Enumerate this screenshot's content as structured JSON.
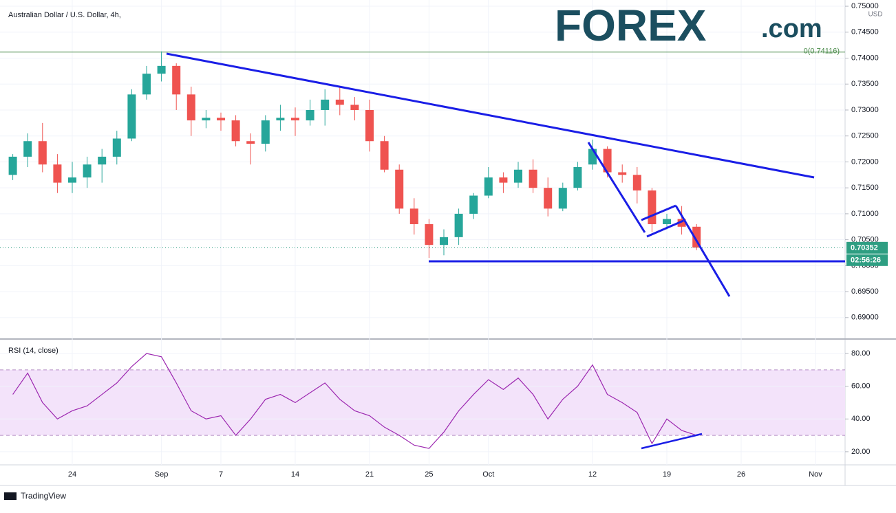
{
  "header": {
    "title": "Australian Dollar / U.S. Dollar, 4h,",
    "footer": "TradingView"
  },
  "logo": {
    "main": "FOREX",
    "suffix": ".com"
  },
  "chart_data": [
    {
      "type": "candlestick",
      "currency": "USD",
      "categories": [
        null,
        null,
        null,
        null,
        "24",
        null,
        null,
        null,
        null,
        null,
        "Sep",
        null,
        null,
        null,
        "7",
        null,
        null,
        null,
        null,
        "14",
        null,
        null,
        null,
        null,
        "21",
        null,
        null,
        null,
        "25",
        null,
        null,
        null,
        "Oct",
        null,
        null,
        null,
        null,
        null,
        null,
        "12",
        null,
        null,
        null,
        null,
        "19",
        null,
        null,
        null,
        null,
        "26",
        null,
        null,
        null,
        null,
        "Nov"
      ],
      "open": [
        0.7175,
        0.721,
        0.724,
        0.7195,
        0.716,
        0.717,
        0.7195,
        0.721,
        0.7245,
        0.733,
        0.737,
        0.7385,
        0.733,
        0.728,
        0.7285,
        0.728,
        0.724,
        0.7235,
        0.728,
        0.7285,
        0.728,
        0.73,
        0.732,
        0.731,
        0.73,
        0.724,
        0.7185,
        0.711,
        0.708,
        0.704,
        0.7055,
        0.71,
        0.7135,
        0.717,
        0.716,
        0.7185,
        0.715,
        0.711,
        0.715,
        0.7195,
        0.7225,
        0.718,
        0.7175,
        0.7145,
        0.708,
        0.709,
        0.7075,
        null,
        null,
        null,
        null,
        null,
        null,
        null,
        null
      ],
      "high": [
        0.7215,
        0.7255,
        0.7275,
        0.7215,
        0.72,
        0.721,
        0.7225,
        0.726,
        0.734,
        0.7385,
        0.7413,
        0.739,
        0.7345,
        0.73,
        0.7295,
        0.729,
        0.7255,
        0.729,
        0.731,
        0.7305,
        0.732,
        0.734,
        0.7345,
        0.7325,
        0.732,
        0.725,
        0.7195,
        0.713,
        0.709,
        0.707,
        0.711,
        0.714,
        0.719,
        0.718,
        0.72,
        0.7205,
        0.717,
        0.716,
        0.72,
        0.7243,
        0.723,
        0.7195,
        0.719,
        0.715,
        0.71,
        0.7115,
        0.708,
        null,
        null,
        null,
        null,
        null,
        null,
        null,
        null
      ],
      "low": [
        0.7165,
        0.719,
        0.718,
        0.714,
        0.714,
        0.715,
        0.716,
        0.7195,
        0.724,
        0.732,
        0.7355,
        0.73,
        0.725,
        0.7265,
        0.726,
        0.723,
        0.7195,
        0.722,
        0.726,
        0.725,
        0.727,
        0.727,
        0.729,
        0.728,
        0.722,
        0.718,
        0.71,
        0.706,
        0.7015,
        0.702,
        0.704,
        0.709,
        0.713,
        0.714,
        0.715,
        0.714,
        0.7095,
        0.7105,
        0.7145,
        0.7185,
        0.717,
        0.716,
        0.712,
        0.7065,
        0.707,
        0.706,
        0.703,
        null,
        null,
        null,
        null,
        null,
        null,
        null,
        null
      ],
      "close": [
        0.721,
        0.724,
        0.7195,
        0.716,
        0.717,
        0.7195,
        0.721,
        0.7245,
        0.733,
        0.737,
        0.7385,
        0.733,
        0.728,
        0.7285,
        0.728,
        0.724,
        0.7235,
        0.728,
        0.7285,
        0.728,
        0.73,
        0.732,
        0.731,
        0.73,
        0.724,
        0.7185,
        0.711,
        0.708,
        0.704,
        0.7055,
        0.71,
        0.7135,
        0.717,
        0.716,
        0.7185,
        0.715,
        0.711,
        0.715,
        0.719,
        0.7225,
        0.718,
        0.7175,
        0.7145,
        0.708,
        0.709,
        0.7075,
        0.7035,
        null,
        null,
        null,
        null,
        null,
        null,
        null,
        null
      ],
      "up_color": "#26a69a",
      "down_color": "#ef5350",
      "ylim": [
        0.686,
        0.7512
      ],
      "yticks": [
        {
          "value": 0.69,
          "label": "0.69000"
        },
        {
          "value": 0.695,
          "label": "0.69500"
        },
        {
          "value": 0.7,
          "label": "0.70000"
        },
        {
          "value": 0.705,
          "label": "0.70500"
        },
        {
          "value": 0.71,
          "label": "0.71000"
        },
        {
          "value": 0.715,
          "label": "0.71500"
        },
        {
          "value": 0.72,
          "label": "0.72000"
        },
        {
          "value": 0.725,
          "label": "0.72500"
        },
        {
          "value": 0.73,
          "label": "0.73000"
        },
        {
          "value": 0.735,
          "label": "0.73500"
        },
        {
          "value": 0.74,
          "label": "0.74000"
        },
        {
          "value": 0.745,
          "label": "0.74500"
        },
        {
          "value": 0.75,
          "label": "0.75000"
        }
      ],
      "reference_line": {
        "value": 0.74116,
        "label": "0(0.74116)",
        "color": "#4a8a4a"
      },
      "last_price": {
        "value": 0.70352,
        "label": "0.70352",
        "color": "#2e9e82"
      },
      "countdown": "02:56:26"
    },
    {
      "type": "line",
      "title": "RSI (14, close)",
      "color": "#9c27b0",
      "values": [
        55,
        68,
        50,
        40,
        45,
        48,
        55,
        62,
        72,
        80,
        78,
        62,
        45,
        40,
        42,
        30,
        40,
        52,
        55,
        50,
        56,
        62,
        52,
        45,
        42,
        35,
        30,
        24,
        22,
        32,
        45,
        55,
        64,
        58,
        65,
        55,
        40,
        52,
        60,
        73,
        55,
        50,
        44,
        25,
        40,
        33,
        30,
        null,
        null,
        null,
        null,
        null,
        null,
        null,
        null
      ],
      "band": [
        30,
        70
      ],
      "band_color": "#f3e3fa",
      "ylim": [
        12.4,
        88.4
      ],
      "yticks": [
        {
          "value": 20,
          "label": "20.00"
        },
        {
          "value": 40,
          "label": "40.00"
        },
        {
          "value": 60,
          "label": "60.00"
        },
        {
          "value": 80,
          "label": "80.00"
        }
      ]
    }
  ]
}
